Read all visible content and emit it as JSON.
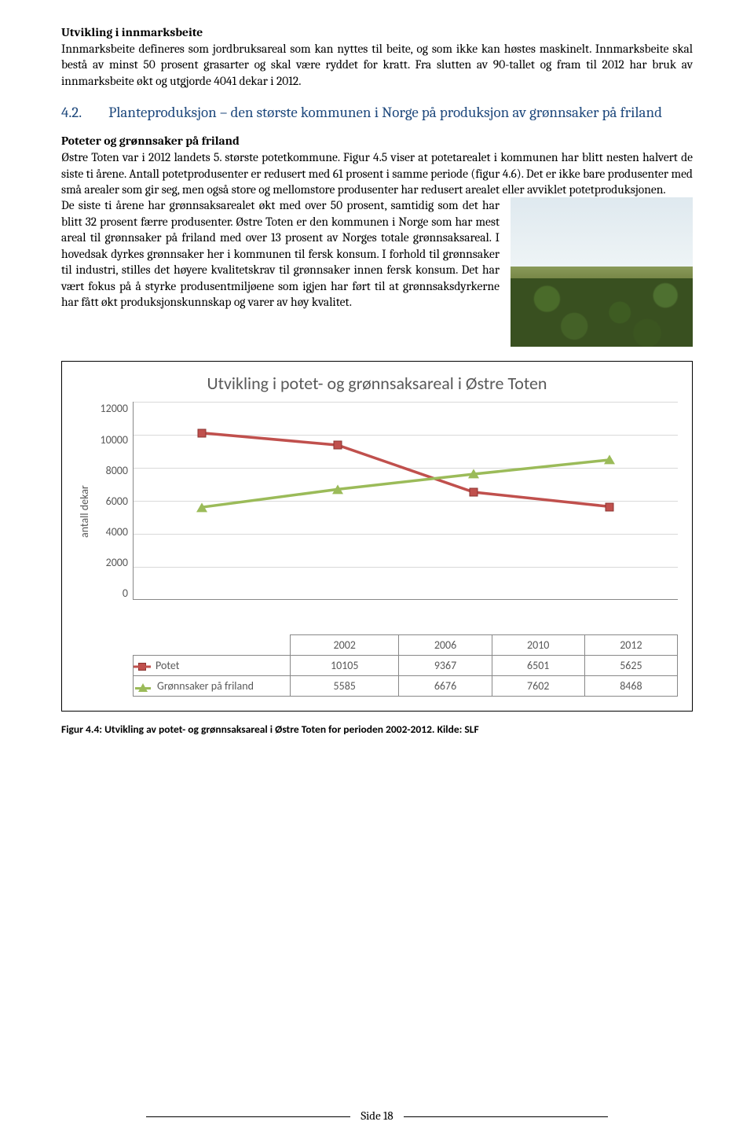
{
  "section1": {
    "title": "Utvikling i innmarksbeite",
    "body": "Innmarksbeite defineres som jordbruksareal som kan nyttes til beite, og som ikke kan høstes maskinelt. Innmarksbeite skal bestå av minst 50 prosent grasarter og skal være ryddet for kratt. Fra slutten av 90-tallet og fram til 2012 har bruk av innmarksbeite økt og utgjorde 4041 dekar i 2012."
  },
  "h2": {
    "num": "4.2.",
    "text": "Planteproduksjon – den største kommunen i Norge på produksjon av grønnsaker på friland"
  },
  "section2": {
    "title": "Poteter og grønnsaker på friland",
    "body": "Østre Toten var i 2012 landets 5. største potetkommune. Figur 4.5 viser at potetarealet i kommunen har blitt nesten halvert de siste ti årene. Antall potetprodusenter er redusert med 61 prosent i samme periode (figur 4.6). Det er ikke bare produsenter med små arealer som gir seg, men også store og mellomstore produsenter har redusert arealet eller avviklet potetproduksjonen."
  },
  "twocol_body": "De siste ti årene har grønnsaksarealet økt med over 50 prosent, samtidig som det har blitt 32 prosent færre produsenter. Østre Toten er den kommunen i Norge som har mest areal til grønnsaker på friland med over 13 prosent av Norges totale grønnsaksareal.  I hovedsak dyrkes grønnsaker her i kommunen til fersk konsum. I forhold til grønnsaker til industri, stilles det høyere kvalitetskrav til grønnsaker innen fersk konsum.  Det har vært fokus på å styrke produsentmiljøene som igjen har ført til at grønnsaksdyrkerne har fått økt produksjonskunnskap og varer av høy kvalitet.",
  "chart": {
    "title": "Utvikling i potet- og grønnsaksareal i Østre Toten",
    "y_label": "antall dekar",
    "y_ticks": [
      "12000",
      "10000",
      "8000",
      "6000",
      "4000",
      "2000",
      "0"
    ],
    "y_max": 12000,
    "grid_color": "#d9d9d9",
    "categories": [
      "2002",
      "2006",
      "2010",
      "2012"
    ],
    "series": [
      {
        "name": "Potet",
        "color": "#c0504d",
        "marker": "square",
        "values": [
          10105,
          9367,
          6501,
          5625
        ]
      },
      {
        "name": "Grønnsaker på friland",
        "color": "#9bbb59",
        "marker": "triangle",
        "values": [
          5585,
          6676,
          7602,
          8468
        ]
      }
    ],
    "x_positions_pct": [
      12.5,
      37.5,
      62.5,
      87.5
    ]
  },
  "caption": "Figur 4.4: Utvikling av potet- og grønnsaksareal i Østre Toten for perioden 2002-2012. Kilde: SLF",
  "footer": "Side 18"
}
